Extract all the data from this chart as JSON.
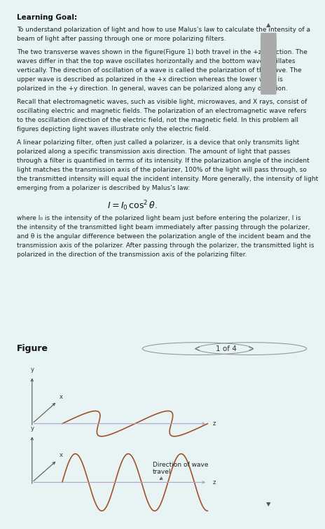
{
  "bg_color_text": "#e8f4f4",
  "bg_color_figure": "#ffffff",
  "text_color": "#222222",
  "link_color": "#3366cc",
  "wave_color": "#a0522d",
  "axis_color_z": "#b0a0c8",
  "axis_color_xy": "#555555",
  "title_bold": "Learning Goal:",
  "paragraph1": "To understand polarization of light and how to use Malus’s law to calculate the intensity of a\nbeam of light after passing through one or more polarizing filters.",
  "paragraph2": "The two transverse waves shown in the figure(Figure 1) both travel in the +z direction. The\nwaves differ in that the top wave oscillates horizontally and the bottom wave oscillates\nvertically. The direction of oscillation of a wave is called the polarization of the wave. The\nupper wave is described as polarized in the +x direction whereas the lower wave is\npolarized in the +y direction. In general, waves can be polarized along any direction.",
  "paragraph3": "Recall that electromagnetic waves, such as visible light, microwaves, and X rays, consist of\noscillating electric and magnetic fields. The polarization of an electromagnetic wave refers\nto the oscillation direction of the electric field, not the magnetic field. In this problem all\nfigures depicting light waves illustrate only the electric field.",
  "paragraph4": "A linear polarizing filter, often just called a polarizer, is a device that only transmits light\npolarized along a specific transmission axis direction. The amount of light that passes\nthrough a filter is quantified in terms of its intensity. If the polarization angle of the incident\nlight matches the transmission axis of the polarizer, 100% of the light will pass through, so\nthe transmitted intensity will equal the incident intensity. More generally, the intensity of light\nemerging from a polarizer is described by Malus’s law:",
  "paragraph5": "where I₀ is the intensity of the polarized light beam just before entering the polarizer, I is\nthe intensity of the transmitted light beam immediately after passing through the polarizer,\nand θ is the angular difference between the polarization angle of the incident beam and the\ntransmission axis of the polarizer. After passing through the polarizer, the transmitted light is\npolarized in the direction of the transmission axis of the polarizing filter.",
  "figure_label": "Figure",
  "nav_text": "1 of 4",
  "direction_label": "Direction of wave\ntravel",
  "scroll_color": "#aaaaaa",
  "scroll_bg": "#d0d0d0",
  "separator_color": "#cccccc"
}
